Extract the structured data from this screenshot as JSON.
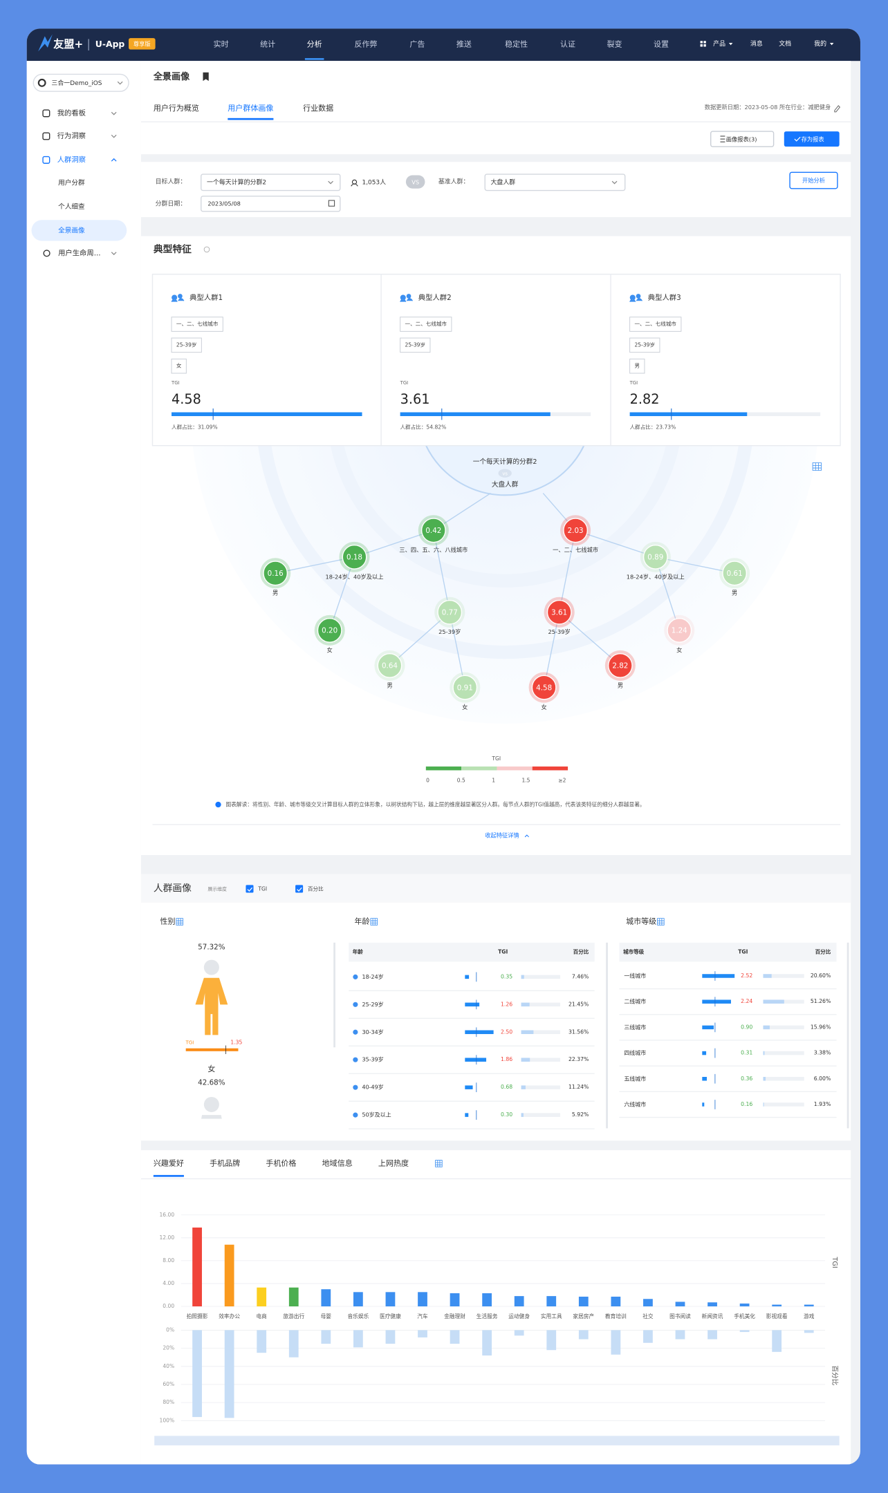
{
  "nav": {
    "brand": "友盟+",
    "product": "U-App",
    "badge": "尊享版",
    "items": [
      "实时",
      "统计",
      "分析",
      "反作弊",
      "广告",
      "推送",
      "稳定性",
      "认证",
      "裂变",
      "设置"
    ],
    "active": 2,
    "right": [
      "产品",
      "消息",
      "文档",
      "我的"
    ]
  },
  "sidebar": {
    "app": "三合一Demo_iOS",
    "menu": [
      "我的看板",
      "行为洞察",
      "人群洞察"
    ],
    "active_menu": 2,
    "submenu": [
      "用户分群",
      "个人细查",
      "全景画像"
    ],
    "selected": 2,
    "more": "用户生命周..."
  },
  "header": {
    "title": "全景画像",
    "tabs": [
      "用户行为概览",
      "用户群体画像",
      "行业数据"
    ],
    "active_tab": 1,
    "update": "数据更新日期：2023-05-08 所在行业：减肥健身",
    "buttons": [
      "画像报表(3)",
      "存为报表"
    ]
  },
  "filter": {
    "target_label": "目标人群：",
    "target": "一个每天计算的分群2",
    "count": "1,053人",
    "vs": "VS",
    "base_label": "基准人群：",
    "base": "大盘人群",
    "date_label": "分群日期：",
    "date": "2023/05/08",
    "start": "开始分析"
  },
  "features": {
    "title": "典型特征",
    "cards": [
      {
        "name": "典型人群1",
        "tags": [
          "一、二、七线城市",
          "25-39岁",
          "女"
        ],
        "tgi_label": "TGI",
        "tgi": 4.58,
        "share": "人群占比：31.09%"
      },
      {
        "name": "典型人群2",
        "tags": [
          "一、二、七线城市",
          "25-39岁"
        ],
        "tgi_label": "TGI",
        "tgi": 3.61,
        "share": "人群占比：54.82%"
      },
      {
        "name": "典型人群3",
        "tags": [
          "一、二、七线城市",
          "25-39岁",
          "男"
        ],
        "tgi_label": "TGI",
        "tgi": 2.82,
        "share": "人群占比：23.73%"
      }
    ],
    "tree": {
      "root": "一个每天计算的分群2",
      "vs": "vs",
      "base": "大盘人群",
      "nodes": [
        {
          "value": "0.42",
          "name": "三、四、五、六、八线城市",
          "color": "#4caf50"
        },
        {
          "value": "0.18",
          "name": "18-24岁、40岁及以上",
          "color": "#4caf50"
        },
        {
          "value": "0.16",
          "name": "男",
          "color": "#4caf50"
        },
        {
          "value": "0.20",
          "name": "女",
          "color": "#4caf50"
        },
        {
          "value": "0.77",
          "name": "25-39岁",
          "color": "#b9e1b3"
        },
        {
          "value": "0.64",
          "name": "男",
          "color": "#b9e1b3"
        },
        {
          "value": "0.91",
          "name": "女",
          "color": "#b9e1b3"
        },
        {
          "value": "2.03",
          "name": "一、二、七线城市",
          "color": "#f0443a"
        },
        {
          "value": "0.89",
          "name": "18-24岁、40岁及以上",
          "color": "#b9e1b3"
        },
        {
          "value": "0.61",
          "name": "男",
          "color": "#b9e1b3"
        },
        {
          "value": "1.24",
          "name": "女",
          "color": "#f8caca"
        },
        {
          "value": "3.61",
          "name": "25-39岁",
          "color": "#f0443a"
        },
        {
          "value": "4.58",
          "name": "女",
          "color": "#f0443a"
        },
        {
          "value": "2.82",
          "name": "男",
          "color": "#f0443a"
        }
      ]
    },
    "legend": {
      "title": "TGI",
      "ticks": [
        "0",
        "0.5",
        "1",
        "1.5",
        "≥2"
      ],
      "colors": [
        "#4caf50",
        "#b9e1b3",
        "#f8caca",
        "#f0443a"
      ]
    },
    "note": "图表解读：将性别、年龄、城市等级交叉计算目标人群的立体形象，以树状结构下钻，越上层的维度越显著区分人群。每节点人群的TGI值越高，代表该类特征的细分人群越显著。",
    "collapse": "收起特征详情"
  },
  "portrait": {
    "title": "人群画像",
    "hint": "展示维度",
    "checks": [
      "TGI",
      "百分比"
    ],
    "gender": {
      "title": "性别",
      "female_pct": "57.32%",
      "tgi_label": "TGI",
      "tgi": "1.35",
      "female": "女",
      "male_pct": "42.68%"
    },
    "age": {
      "title": "年龄",
      "header": [
        "年龄",
        "TGI",
        "百分比"
      ],
      "rows": [
        [
          "18-24岁",
          "0.35",
          "7.46%"
        ],
        [
          "25-29岁",
          "1.26",
          "21.45%"
        ],
        [
          "30-34岁",
          "2.50",
          "31.56%"
        ],
        [
          "35-39岁",
          "1.86",
          "22.37%"
        ],
        [
          "40-49岁",
          "0.68",
          "11.24%"
        ],
        [
          "50岁及以上",
          "0.30",
          "5.92%"
        ]
      ]
    },
    "city": {
      "title": "城市等级",
      "header": [
        "城市等级",
        "TGI",
        "百分比"
      ],
      "rows": [
        [
          "一线城市",
          "2.52",
          "20.60%"
        ],
        [
          "二线城市",
          "2.24",
          "51.26%"
        ],
        [
          "三线城市",
          "0.90",
          "15.96%"
        ],
        [
          "四线城市",
          "0.31",
          "3.38%"
        ],
        [
          "五线城市",
          "0.36",
          "6.00%"
        ],
        [
          "六线城市",
          "0.16",
          "1.93%"
        ]
      ]
    }
  },
  "interests": {
    "tabs": [
      "兴趣爱好",
      "手机品牌",
      "手机价格",
      "地域信息",
      "上网热度"
    ],
    "active": 0
  },
  "chart_data": {
    "type": "bar",
    "categories": [
      "拍照摄影",
      "效率办公",
      "电商",
      "旅游出行",
      "母婴",
      "音乐娱乐",
      "医疗健康",
      "汽车",
      "金融理财",
      "生活服务",
      "运动健身",
      "实用工具",
      "家居房产",
      "教育培训",
      "社交",
      "图书阅读",
      "新闻资讯",
      "手机美化",
      "影视观看",
      "游戏"
    ],
    "series": [
      {
        "name": "TGI",
        "values": [
          13.8,
          10.8,
          3.3,
          3.3,
          3.0,
          2.5,
          2.5,
          2.5,
          2.3,
          2.3,
          1.8,
          1.8,
          1.7,
          1.7,
          1.3,
          0.8,
          0.7,
          0.5,
          0.3,
          0.3
        ],
        "colors": [
          "#f0443a",
          "#fa9a1e",
          "#fccf1f",
          "#4caf50",
          "#3c8ff0",
          "#3c8ff0",
          "#3c8ff0",
          "#3c8ff0",
          "#3c8ff0",
          "#3c8ff0",
          "#3c8ff0",
          "#3c8ff0",
          "#3c8ff0",
          "#3c8ff0",
          "#3c8ff0",
          "#3c8ff0",
          "#3c8ff0",
          "#3c8ff0",
          "#3c8ff0",
          "#3c8ff0"
        ]
      },
      {
        "name": "百分比",
        "axis": "y2",
        "color": "#c6ddf6",
        "values": [
          96,
          97,
          25,
          30,
          15,
          19,
          15,
          8,
          15,
          28,
          6,
          22,
          10,
          27,
          14,
          10,
          10,
          2,
          24,
          3
        ]
      }
    ],
    "ylim": [
      0,
      16
    ],
    "yticks": [
      {
        "value": 0,
        "label": "0.00"
      },
      {
        "value": 4,
        "label": "4.00"
      },
      {
        "value": 8,
        "label": "8.00"
      },
      {
        "value": 12,
        "label": "12.00"
      },
      {
        "value": 16,
        "label": "16.00"
      }
    ],
    "y2lim": [
      0,
      100
    ],
    "y2ticks": [
      {
        "value": 0,
        "label": "0%"
      },
      {
        "value": 20,
        "label": "20%"
      },
      {
        "value": 40,
        "label": "40%"
      },
      {
        "value": 60,
        "label": "60%"
      },
      {
        "value": 80,
        "label": "80%"
      },
      {
        "value": 100,
        "label": "100%"
      }
    ],
    "y2_direction": "down",
    "grid": true
  }
}
